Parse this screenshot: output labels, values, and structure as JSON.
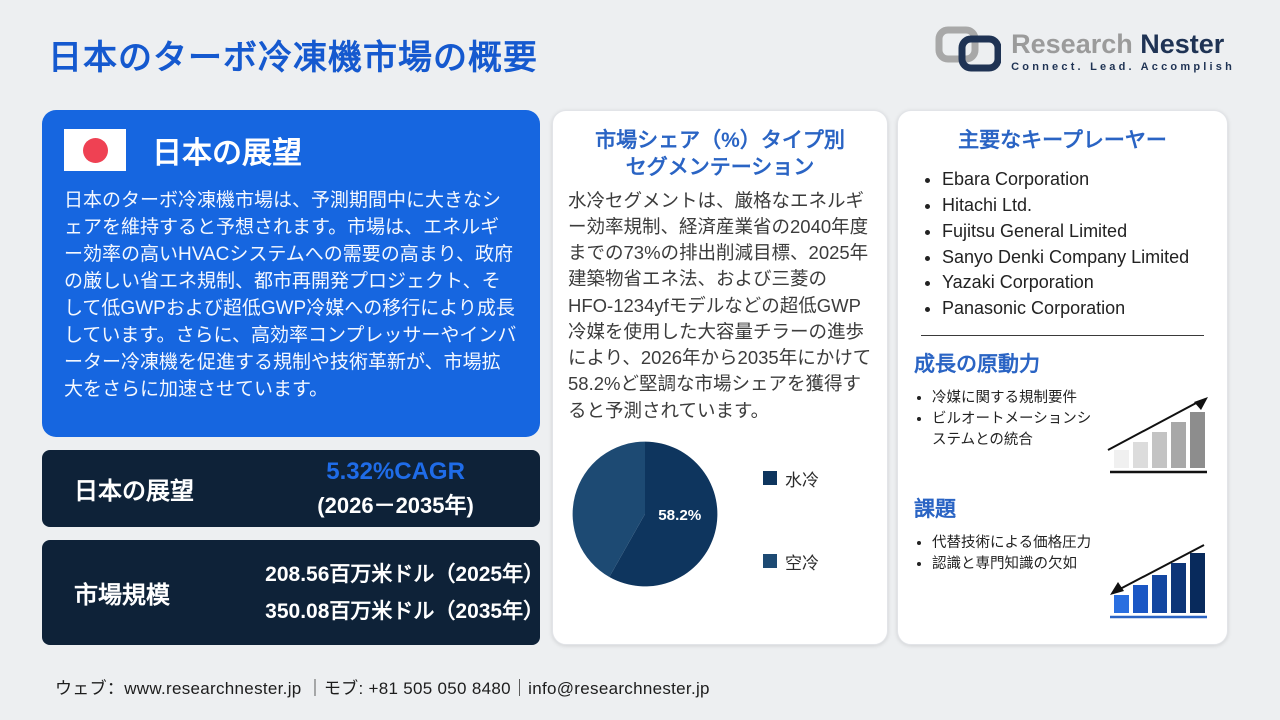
{
  "page": {
    "title": "日本のターボ冷凍機市場の概要",
    "footer": "ウェブ：www.researchnester.jp ｜モブ: +81 505 050 8480｜info@researchnester.jp"
  },
  "logo": {
    "name_gray": "Research",
    "name_navy": "Nester",
    "tagline": "Connect. Lead. Accomplish"
  },
  "outlook": {
    "heading": "日本の展望",
    "body": "日本のターボ冷凍機市場は、予測期間中に大きなシェアを維持すると予想されます。市場は、エネルギー効率の高いHVACシステムへの需要の高まり、政府の厳しい省エネ規制、都市再開発プロジェクト、そして低GWPおよび超低GWP冷媒への移行により成長しています。さらに、高効率コンプレッサーやインバーター冷凍機を促進する規制や技術革新が、市場拡大をさらに加速させています。"
  },
  "cagr": {
    "label": "日本の展望",
    "value": "5.32%CAGR",
    "period": "(2026－2035年)"
  },
  "market_size": {
    "label": "市場規模",
    "value_2025": "208.56百万米ドル（2025年）",
    "value_2035": "350.08百万米ドル（2035年）"
  },
  "segmentation": {
    "heading_line1": "市場シェア（%）タイプ別",
    "heading_line2": "セグメンテーション",
    "body": "水冷セグメントは、厳格なエネルギー効率規制、経済産業省の2040年度までの73%の排出削減目標、2025年建築物省エネ法、および三菱のHFO-1234yfモデルなどの超低GWP冷媒を使用した大容量チラーの進歩により、2026年から2035年にかけて58.2%ど堅調な市場シェアを獲得すると予測されています。"
  },
  "chart_data": {
    "type": "pie",
    "title": "市場シェア（%）タイプ別セグメンテーション",
    "labels": [
      "水冷",
      "空冷"
    ],
    "values": [
      58.2,
      41.8
    ],
    "colors": [
      "#0e355e",
      "#1d4a73"
    ],
    "data_label": "58.2%",
    "legend_position": "right"
  },
  "key_players": {
    "heading": "主要なキープレーヤー",
    "items": [
      "Ebara Corporation",
      "Hitachi Ltd.",
      "Fujitsu General Limited",
      "Sanyo Denki Company Limited",
      "Yazaki Corporation",
      "Panasonic Corporation"
    ]
  },
  "growth_drivers": {
    "heading": "成長の原動力",
    "items": [
      "冷媒に関する規制要件",
      "ビルオートメーションシステムとの統合"
    ]
  },
  "challenges": {
    "heading": "課題",
    "items": [
      "代替技術による価格圧力",
      "認識と専門知識の欠如"
    ]
  },
  "colors": {
    "page_background": "#edeff1",
    "title_blue": "#1559cf",
    "panel_blue": "#1666e0",
    "panel_navy": "#0e2238",
    "cagr_blue": "#1f6ce8",
    "card_heading_blue": "#2a64c4",
    "flag_red": "#ef4153",
    "logo_gray": "#9b9b9b",
    "logo_navy": "#1f3354"
  }
}
